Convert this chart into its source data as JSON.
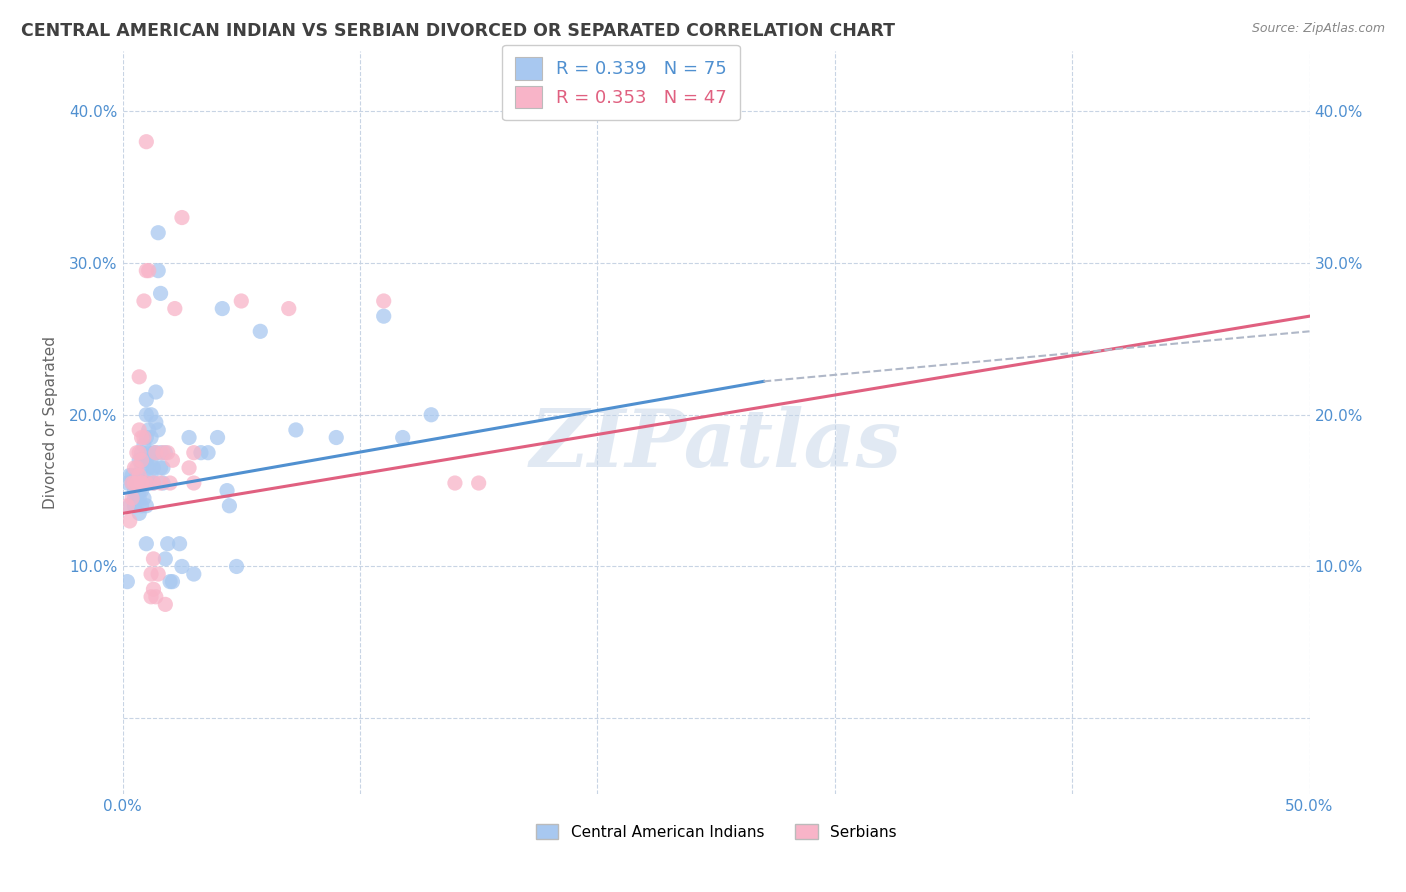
{
  "title": "CENTRAL AMERICAN INDIAN VS SERBIAN DIVORCED OR SEPARATED CORRELATION CHART",
  "source": "Source: ZipAtlas.com",
  "ylabel": "Divorced or Separated",
  "xlim": [
    0.0,
    0.5
  ],
  "ylim": [
    -0.05,
    0.44
  ],
  "x_ticks": [
    0.0,
    0.1,
    0.2,
    0.3,
    0.4,
    0.5
  ],
  "x_tick_labels": [
    "0.0%",
    "",
    "",
    "",
    "",
    "50.0%"
  ],
  "y_ticks": [
    0.0,
    0.1,
    0.2,
    0.3,
    0.4
  ],
  "y_tick_labels": [
    "",
    "10.0%",
    "20.0%",
    "30.0%",
    "40.0%"
  ],
  "right_y_tick_labels": [
    "",
    "10.0%",
    "20.0%",
    "30.0%",
    "40.0%"
  ],
  "blue_R": 0.339,
  "blue_N": 75,
  "pink_R": 0.353,
  "pink_N": 47,
  "blue_color": "#a8c8f0",
  "pink_color": "#f8b4c8",
  "blue_line_color": "#5090d0",
  "pink_line_color": "#e06080",
  "dashed_line_color": "#b0b8c8",
  "watermark": "ZIPatlas",
  "legend_label_blue": "Central American Indians",
  "legend_label_pink": "Serbians",
  "blue_scatter": [
    [
      0.002,
      0.155
    ],
    [
      0.003,
      0.16
    ],
    [
      0.003,
      0.14
    ],
    [
      0.004,
      0.155
    ],
    [
      0.004,
      0.16
    ],
    [
      0.005,
      0.15
    ],
    [
      0.005,
      0.145
    ],
    [
      0.005,
      0.14
    ],
    [
      0.006,
      0.155
    ],
    [
      0.006,
      0.16
    ],
    [
      0.006,
      0.145
    ],
    [
      0.007,
      0.17
    ],
    [
      0.007,
      0.15
    ],
    [
      0.007,
      0.145
    ],
    [
      0.007,
      0.135
    ],
    [
      0.008,
      0.175
    ],
    [
      0.008,
      0.165
    ],
    [
      0.008,
      0.15
    ],
    [
      0.008,
      0.14
    ],
    [
      0.009,
      0.18
    ],
    [
      0.009,
      0.17
    ],
    [
      0.009,
      0.155
    ],
    [
      0.009,
      0.145
    ],
    [
      0.01,
      0.21
    ],
    [
      0.01,
      0.2
    ],
    [
      0.01,
      0.185
    ],
    [
      0.01,
      0.17
    ],
    [
      0.01,
      0.155
    ],
    [
      0.01,
      0.14
    ],
    [
      0.01,
      0.115
    ],
    [
      0.011,
      0.19
    ],
    [
      0.011,
      0.175
    ],
    [
      0.011,
      0.165
    ],
    [
      0.011,
      0.155
    ],
    [
      0.012,
      0.2
    ],
    [
      0.012,
      0.185
    ],
    [
      0.012,
      0.17
    ],
    [
      0.012,
      0.16
    ],
    [
      0.013,
      0.175
    ],
    [
      0.013,
      0.165
    ],
    [
      0.013,
      0.155
    ],
    [
      0.014,
      0.215
    ],
    [
      0.014,
      0.195
    ],
    [
      0.014,
      0.175
    ],
    [
      0.015,
      0.295
    ],
    [
      0.015,
      0.32
    ],
    [
      0.015,
      0.19
    ],
    [
      0.016,
      0.28
    ],
    [
      0.016,
      0.175
    ],
    [
      0.016,
      0.165
    ],
    [
      0.017,
      0.165
    ],
    [
      0.017,
      0.155
    ],
    [
      0.018,
      0.175
    ],
    [
      0.018,
      0.105
    ],
    [
      0.019,
      0.115
    ],
    [
      0.02,
      0.09
    ],
    [
      0.021,
      0.09
    ],
    [
      0.024,
      0.115
    ],
    [
      0.025,
      0.1
    ],
    [
      0.028,
      0.185
    ],
    [
      0.03,
      0.095
    ],
    [
      0.033,
      0.175
    ],
    [
      0.036,
      0.175
    ],
    [
      0.04,
      0.185
    ],
    [
      0.042,
      0.27
    ],
    [
      0.044,
      0.15
    ],
    [
      0.045,
      0.14
    ],
    [
      0.048,
      0.1
    ],
    [
      0.058,
      0.255
    ],
    [
      0.073,
      0.19
    ],
    [
      0.09,
      0.185
    ],
    [
      0.11,
      0.265
    ],
    [
      0.118,
      0.185
    ],
    [
      0.13,
      0.2
    ],
    [
      0.002,
      0.09
    ]
  ],
  "pink_scatter": [
    [
      0.002,
      0.14
    ],
    [
      0.003,
      0.13
    ],
    [
      0.004,
      0.155
    ],
    [
      0.004,
      0.145
    ],
    [
      0.005,
      0.165
    ],
    [
      0.005,
      0.155
    ],
    [
      0.006,
      0.175
    ],
    [
      0.006,
      0.165
    ],
    [
      0.006,
      0.155
    ],
    [
      0.007,
      0.225
    ],
    [
      0.007,
      0.19
    ],
    [
      0.007,
      0.175
    ],
    [
      0.007,
      0.16
    ],
    [
      0.008,
      0.185
    ],
    [
      0.008,
      0.17
    ],
    [
      0.008,
      0.155
    ],
    [
      0.008,
      0.155
    ],
    [
      0.009,
      0.275
    ],
    [
      0.009,
      0.185
    ],
    [
      0.01,
      0.38
    ],
    [
      0.01,
      0.295
    ],
    [
      0.01,
      0.155
    ],
    [
      0.011,
      0.295
    ],
    [
      0.012,
      0.08
    ],
    [
      0.012,
      0.095
    ],
    [
      0.013,
      0.155
    ],
    [
      0.013,
      0.105
    ],
    [
      0.013,
      0.085
    ],
    [
      0.014,
      0.175
    ],
    [
      0.014,
      0.08
    ],
    [
      0.015,
      0.095
    ],
    [
      0.016,
      0.155
    ],
    [
      0.017,
      0.175
    ],
    [
      0.018,
      0.075
    ],
    [
      0.019,
      0.175
    ],
    [
      0.02,
      0.155
    ],
    [
      0.021,
      0.17
    ],
    [
      0.022,
      0.27
    ],
    [
      0.025,
      0.33
    ],
    [
      0.028,
      0.165
    ],
    [
      0.03,
      0.175
    ],
    [
      0.03,
      0.155
    ],
    [
      0.05,
      0.275
    ],
    [
      0.07,
      0.27
    ],
    [
      0.11,
      0.275
    ],
    [
      0.15,
      0.155
    ],
    [
      0.14,
      0.155
    ]
  ],
  "blue_line": {
    "x0": 0.0,
    "x1": 0.27,
    "y0": 0.148,
    "y1": 0.222
  },
  "pink_line": {
    "x0": 0.0,
    "x1": 0.5,
    "y0": 0.135,
    "y1": 0.265
  },
  "dashed_line": {
    "x0": 0.27,
    "x1": 0.5,
    "y0": 0.222,
    "y1": 0.255
  },
  "background_color": "#ffffff",
  "grid_color": "#c8d4e4",
  "title_color": "#404040",
  "tick_label_color": "#5090d0"
}
